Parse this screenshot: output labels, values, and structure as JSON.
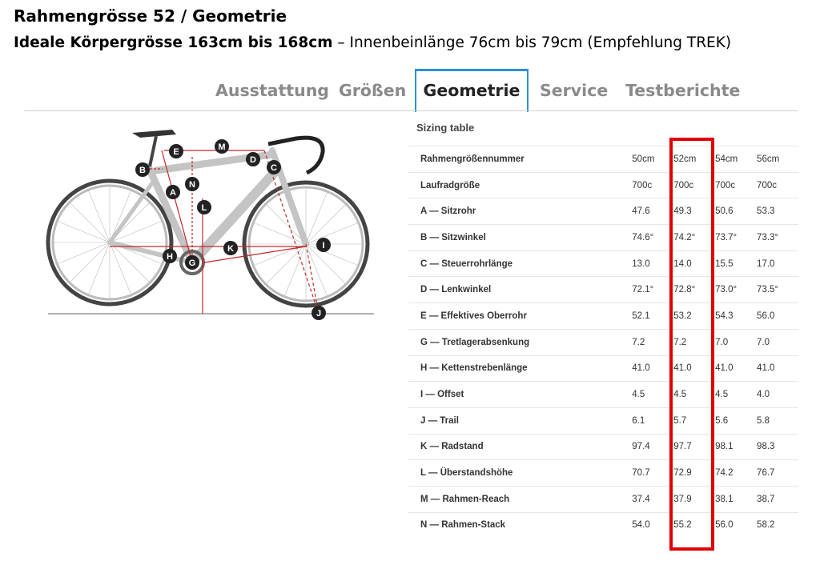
{
  "header": {
    "title": "Rahmengrösse 52 / Geometrie",
    "subtitle_bold": "Ideale Körpergrösse 163cm bis 168cm",
    "subtitle_rest": " – Innenbeinlänge 76cm bis 79cm (Empfehlung TREK)"
  },
  "tabs": [
    {
      "label": "Ausstattung"
    },
    {
      "label": "Größen"
    },
    {
      "label": "Geometrie"
    },
    {
      "label": "Service"
    },
    {
      "label": "Testberichte"
    }
  ],
  "active_tab": "Geometrie",
  "sizing": {
    "title": "Sizing table",
    "rows": [
      {
        "label": "Rahmengrößennummer",
        "values": [
          "50cm",
          "52cm",
          "54cm",
          "56cm"
        ]
      },
      {
        "label": "Laufradgröße",
        "values": [
          "700c",
          "700c",
          "700c",
          "700c"
        ]
      },
      {
        "label": "A — Sitzrohr",
        "values": [
          "47.6",
          "49.3",
          "50.6",
          "53.3"
        ]
      },
      {
        "label": "B — Sitzwinkel",
        "values": [
          "74.6°",
          "74.2°",
          "73.7°",
          "73.3°"
        ]
      },
      {
        "label": "C — Steuerrohrlänge",
        "values": [
          "13.0",
          "14.0",
          "15.5",
          "17.0"
        ]
      },
      {
        "label": "D — Lenkwinkel",
        "values": [
          "72.1°",
          "72.8°",
          "73.0°",
          "73.5°"
        ]
      },
      {
        "label": "E — Effektives Oberrohr",
        "values": [
          "52.1",
          "53.2",
          "54.3",
          "56.0"
        ]
      },
      {
        "label": "G — Tretlagerabsenkung",
        "values": [
          "7.2",
          "7.2",
          "7.0",
          "7.0"
        ]
      },
      {
        "label": "H — Kettenstrebenlänge",
        "values": [
          "41.0",
          "41.0",
          "41.0",
          "41.0"
        ]
      },
      {
        "label": "I — Offset",
        "values": [
          "4.5",
          "4.5",
          "4.5",
          "4.0"
        ]
      },
      {
        "label": "J — Trail",
        "values": [
          "6.1",
          "5.7",
          "5.6",
          "5.8"
        ]
      },
      {
        "label": "K — Radstand",
        "values": [
          "97.4",
          "97.7",
          "98.1",
          "98.3"
        ]
      },
      {
        "label": "L — Überstandshöhe",
        "values": [
          "70.7",
          "72.9",
          "74.2",
          "76.7"
        ]
      },
      {
        "label": "M — Rahmen-Reach",
        "values": [
          "37.4",
          "37.9",
          "38.1",
          "38.7"
        ]
      },
      {
        "label": "N — Rahmen-Stack",
        "values": [
          "54.0",
          "55.2",
          "56.0",
          "58.2"
        ]
      }
    ]
  },
  "highlight_color": "#e00000",
  "diagram_labels": {
    "A": "A",
    "B": "B",
    "C": "C",
    "D": "D",
    "E": "E",
    "G": "G",
    "H": "H",
    "I": "I",
    "J": "J",
    "K": "K",
    "L": "L",
    "M": "M",
    "N": "N"
  }
}
